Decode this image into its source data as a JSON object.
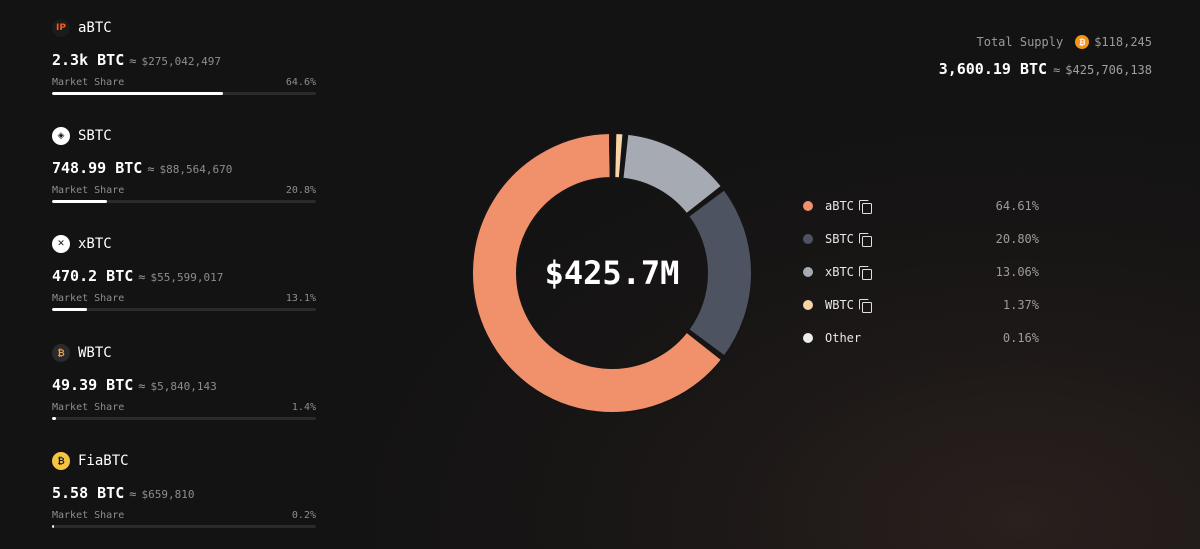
{
  "assets": [
    {
      "name": "aBTC",
      "logo_icon": "abtc-logo-icon",
      "logo_text": "IP",
      "logo_bg": "#1b1b1b",
      "logo_fg": "#ff5a1f",
      "btc": "2.3k BTC",
      "approx": "≈",
      "usd": "$275,042,497",
      "share_label": "Market Share",
      "share": "64.6%",
      "share_value": 64.6
    },
    {
      "name": "SBTC",
      "logo_icon": "sbtc-logo-icon",
      "logo_text": "◈",
      "logo_bg": "#ffffff",
      "logo_fg": "#141414",
      "btc": "748.99 BTC",
      "approx": "≈",
      "usd": "$88,564,670",
      "share_label": "Market Share",
      "share": "20.8%",
      "share_value": 20.8
    },
    {
      "name": "xBTC",
      "logo_icon": "xbtc-logo-icon",
      "logo_text": "✕",
      "logo_bg": "#ffffff",
      "logo_fg": "#111111",
      "btc": "470.2 BTC",
      "approx": "≈",
      "usd": "$55,599,017",
      "share_label": "Market Share",
      "share": "13.1%",
      "share_value": 13.1
    },
    {
      "name": "WBTC",
      "logo_icon": "wbtc-logo-icon",
      "logo_text": "₿",
      "logo_bg": "#2a2a2a",
      "logo_fg": "#f0a050",
      "btc": "49.39 BTC",
      "approx": "≈",
      "usd": "$5,840,143",
      "share_label": "Market Share",
      "share": "1.4%",
      "share_value": 1.4
    },
    {
      "name": "FiaBTC",
      "logo_icon": "fiabtc-logo-icon",
      "logo_text": "₿",
      "logo_bg": "#f5c542",
      "logo_fg": "#1a1a1a",
      "btc": "5.58 BTC",
      "approx": "≈",
      "usd": "$659,810",
      "share_label": "Market Share",
      "share": "0.2%",
      "share_value": 0.2
    }
  ],
  "supply": {
    "label": "Total Supply",
    "coin_icon": "bitcoin-icon",
    "coin_glyph": "₿",
    "price": "$118,245",
    "btc": "3,600.19 BTC",
    "approx": "≈",
    "usd": "$425,706,138"
  },
  "chart_data": {
    "type": "pie",
    "style": "donut",
    "center_label": "$425.7M",
    "categories": [
      "aBTC",
      "SBTC",
      "xBTC",
      "WBTC",
      "Other"
    ],
    "values": [
      64.61,
      20.8,
      13.06,
      1.37,
      0.16
    ],
    "labels": [
      "64.61%",
      "20.80%",
      "13.06%",
      "1.37%",
      "0.16%"
    ],
    "colors": [
      "#f0916c",
      "#4d5360",
      "#a6abb3",
      "#f6d4a6",
      "#ededed"
    ],
    "start": "top, clockwise from aBTC (counter-clockwise order shown)",
    "legend_position": "right"
  },
  "legend": {
    "copy_icon": "copy-icon"
  }
}
